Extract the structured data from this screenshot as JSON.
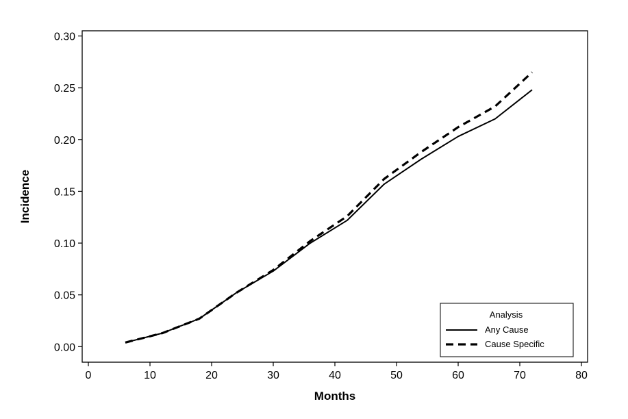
{
  "chart_data": {
    "type": "line",
    "title": "",
    "xlabel": "Months",
    "ylabel": "Incidence",
    "xlim": [
      -1,
      81
    ],
    "ylim": [
      -0.015,
      0.305
    ],
    "x_ticks": [
      0,
      10,
      20,
      30,
      40,
      50,
      60,
      70,
      80
    ],
    "x_tick_labels": [
      "0",
      "10",
      "20",
      "30",
      "40",
      "50",
      "60",
      "70",
      "80"
    ],
    "y_ticks": [
      0.0,
      0.05,
      0.1,
      0.15,
      0.2,
      0.25,
      0.3
    ],
    "y_tick_labels": [
      "0.00",
      "0.05",
      "0.10",
      "0.15",
      "0.20",
      "0.25",
      "0.30"
    ],
    "grid": false,
    "legend": {
      "title": "Analysis",
      "placement": "bottom-right"
    },
    "series": [
      {
        "name": "Any Cause",
        "style": "solid",
        "color": "#000000",
        "x": [
          6,
          12,
          18,
          24,
          30,
          36,
          42,
          48,
          54,
          60,
          66,
          72
        ],
        "y": [
          0.004,
          0.013,
          0.027,
          0.052,
          0.073,
          0.1,
          0.122,
          0.157,
          0.181,
          0.203,
          0.22,
          0.248
        ]
      },
      {
        "name": "Cause Specific",
        "style": "dashed",
        "color": "#000000",
        "x": [
          6,
          12,
          18,
          24,
          30,
          36,
          42,
          48,
          54,
          60,
          66,
          72
        ],
        "y": [
          0.004,
          0.013,
          0.027,
          0.052,
          0.074,
          0.102,
          0.126,
          0.162,
          0.188,
          0.212,
          0.232,
          0.265
        ]
      }
    ]
  }
}
